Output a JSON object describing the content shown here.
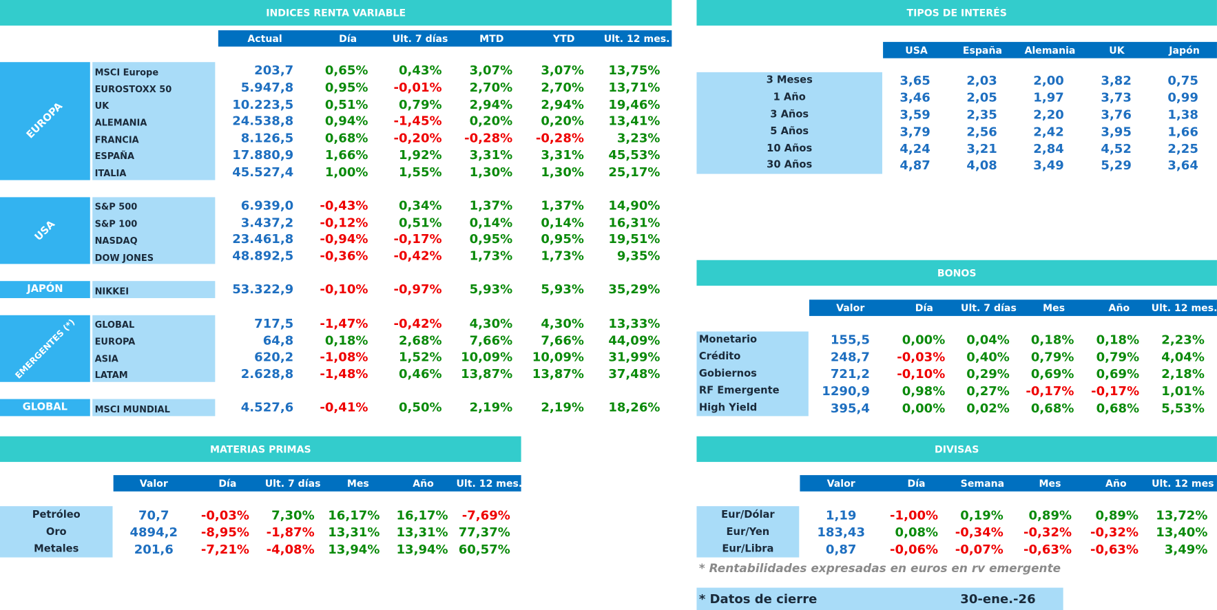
{
  "renta_variable": {
    "title": "INDICES RENTA VARIABLE",
    "columns": [
      "Actual",
      "Día",
      "Ult. 7 días",
      "MTD",
      "YTD",
      "Ult. 12 mes."
    ],
    "groups": [
      {
        "name": "EUROPA",
        "rows": [
          {
            "label": "MSCI Europe",
            "values": [
              "203,7",
              "0,65%",
              "0,43%",
              "3,07%",
              "3,07%",
              "13,75%"
            ]
          },
          {
            "label": "EUROSTOXX 50",
            "values": [
              "5.947,8",
              "0,95%",
              "-0,01%",
              "2,70%",
              "2,70%",
              "13,71%"
            ]
          },
          {
            "label": "UK",
            "values": [
              "10.223,5",
              "0,51%",
              "0,79%",
              "2,94%",
              "2,94%",
              "19,46%"
            ]
          },
          {
            "label": "ALEMANIA",
            "values": [
              "24.538,8",
              "0,94%",
              "-1,45%",
              "0,20%",
              "0,20%",
              "13,41%"
            ]
          },
          {
            "label": "FRANCIA",
            "values": [
              "8.126,5",
              "0,68%",
              "-0,20%",
              "-0,28%",
              "-0,28%",
              "3,23%"
            ]
          },
          {
            "label": "ESPAÑA",
            "values": [
              "17.880,9",
              "1,66%",
              "1,92%",
              "3,31%",
              "3,31%",
              "45,53%"
            ]
          },
          {
            "label": "ITALIA",
            "values": [
              "45.527,4",
              "1,00%",
              "1,55%",
              "1,30%",
              "1,30%",
              "25,17%"
            ]
          }
        ]
      },
      {
        "name": "USA",
        "rows": [
          {
            "label": "S&P 500",
            "values": [
              "6.939,0",
              "-0,43%",
              "0,34%",
              "1,37%",
              "1,37%",
              "14,90%"
            ]
          },
          {
            "label": "S&P 100",
            "values": [
              "3.437,2",
              "-0,12%",
              "0,51%",
              "0,14%",
              "0,14%",
              "16,31%"
            ]
          },
          {
            "label": "NASDAQ",
            "values": [
              "23.461,8",
              "-0,94%",
              "-0,17%",
              "0,95%",
              "0,95%",
              "19,51%"
            ]
          },
          {
            "label": "DOW JONES",
            "values": [
              "48.892,5",
              "-0,36%",
              "-0,42%",
              "1,73%",
              "1,73%",
              "9,35%"
            ]
          }
        ]
      },
      {
        "name": "JAPÓN",
        "rows": [
          {
            "label": "NIKKEI",
            "values": [
              "53.322,9",
              "-0,10%",
              "-0,97%",
              "5,93%",
              "5,93%",
              "35,29%"
            ]
          }
        ]
      },
      {
        "name": "EMERGENTES (*)",
        "rows": [
          {
            "label": "GLOBAL",
            "values": [
              "717,5",
              "-1,47%",
              "-0,42%",
              "4,30%",
              "4,30%",
              "13,33%"
            ]
          },
          {
            "label": "EUROPA",
            "values": [
              "64,8",
              "0,18%",
              "2,68%",
              "7,66%",
              "7,66%",
              "44,09%"
            ]
          },
          {
            "label": "ASIA",
            "values": [
              "620,2",
              "-1,08%",
              "1,52%",
              "10,09%",
              "10,09%",
              "31,99%"
            ]
          },
          {
            "label": "LATAM",
            "values": [
              "2.628,8",
              "-1,48%",
              "0,46%",
              "13,87%",
              "13,87%",
              "37,48%"
            ]
          }
        ]
      },
      {
        "name": "GLOBAL",
        "rows": [
          {
            "label": "MSCI MUNDIAL",
            "values": [
              "4.527,6",
              "-0,41%",
              "0,50%",
              "2,19%",
              "2,19%",
              "18,26%"
            ]
          }
        ]
      }
    ]
  },
  "tipos_interes": {
    "title": "TIPOS DE INTERÉS",
    "columns": [
      "USA",
      "España",
      "Alemania",
      "UK",
      "Japón"
    ],
    "rows": [
      {
        "label": "3 Meses",
        "values": [
          "3,65",
          "2,03",
          "2,00",
          "3,82",
          "0,75"
        ]
      },
      {
        "label": "1 Año",
        "values": [
          "3,46",
          "2,05",
          "1,97",
          "3,73",
          "0,99"
        ]
      },
      {
        "label": "3 Años",
        "values": [
          "3,59",
          "2,35",
          "2,20",
          "3,76",
          "1,38"
        ]
      },
      {
        "label": "5 Años",
        "values": [
          "3,79",
          "2,56",
          "2,42",
          "3,95",
          "1,66"
        ]
      },
      {
        "label": "10 Años",
        "values": [
          "4,24",
          "3,21",
          "2,84",
          "4,52",
          "2,25"
        ]
      },
      {
        "label": "30 Años",
        "values": [
          "4,87",
          "4,08",
          "3,49",
          "5,29",
          "3,64"
        ]
      }
    ]
  },
  "bonos": {
    "title": "BONOS",
    "columns": [
      "Valor",
      "Día",
      "Ult. 7 días",
      "Mes",
      "Año",
      "Ult. 12 mes."
    ],
    "rows": [
      {
        "label": "Monetario",
        "values": [
          "155,5",
          "0,00%",
          "0,04%",
          "0,18%",
          "0,18%",
          "2,23%"
        ]
      },
      {
        "label": "Crédito",
        "values": [
          "248,7",
          "-0,03%",
          "0,40%",
          "0,79%",
          "0,79%",
          "4,04%"
        ]
      },
      {
        "label": "Gobiernos",
        "values": [
          "721,2",
          "-0,10%",
          "0,29%",
          "0,69%",
          "0,69%",
          "2,18%"
        ]
      },
      {
        "label": "RF Emergente",
        "values": [
          "1290,9",
          "0,98%",
          "0,27%",
          "-0,17%",
          "-0,17%",
          "1,01%"
        ]
      },
      {
        "label": "High Yield",
        "values": [
          "395,4",
          "0,00%",
          "0,02%",
          "0,68%",
          "0,68%",
          "5,53%"
        ]
      }
    ]
  },
  "materias_primas": {
    "title": "MATERIAS PRIMAS",
    "columns": [
      "Valor",
      "Día",
      "Ult. 7 días",
      "Mes",
      "Año",
      "Ult. 12 mes."
    ],
    "rows": [
      {
        "label": "Petróleo",
        "values": [
          "70,7",
          "-0,03%",
          "7,30%",
          "16,17%",
          "16,17%",
          "-7,69%"
        ]
      },
      {
        "label": "Oro",
        "values": [
          "4894,2",
          "-8,95%",
          "-1,87%",
          "13,31%",
          "13,31%",
          "77,37%"
        ]
      },
      {
        "label": "Metales",
        "values": [
          "201,6",
          "-7,21%",
          "-4,08%",
          "13,94%",
          "13,94%",
          "60,57%"
        ]
      }
    ]
  },
  "divisas": {
    "title": "DIVISAS",
    "columns": [
      "Valor",
      "Día",
      "Semana",
      "Mes",
      "Año",
      "Ult. 12 mes"
    ],
    "rows": [
      {
        "label": "Eur/Dólar",
        "values": [
          "1,19",
          "-1,00%",
          "0,19%",
          "0,89%",
          "0,89%",
          "13,72%"
        ]
      },
      {
        "label": "Eur/Yen",
        "values": [
          "183,43",
          "0,08%",
          "-0,34%",
          "-0,32%",
          "-0,32%",
          "13,40%"
        ]
      },
      {
        "label": "Eur/Libra",
        "values": [
          "0,87",
          "-0,06%",
          "-0,07%",
          "-0,63%",
          "-0,63%",
          "3,49%"
        ]
      }
    ]
  },
  "notes": {
    "note": "* Rentabilidades expresadas en euros en rv emergente",
    "closing_label": "* Datos de cierre",
    "closing_date": "30-ene.-26"
  }
}
